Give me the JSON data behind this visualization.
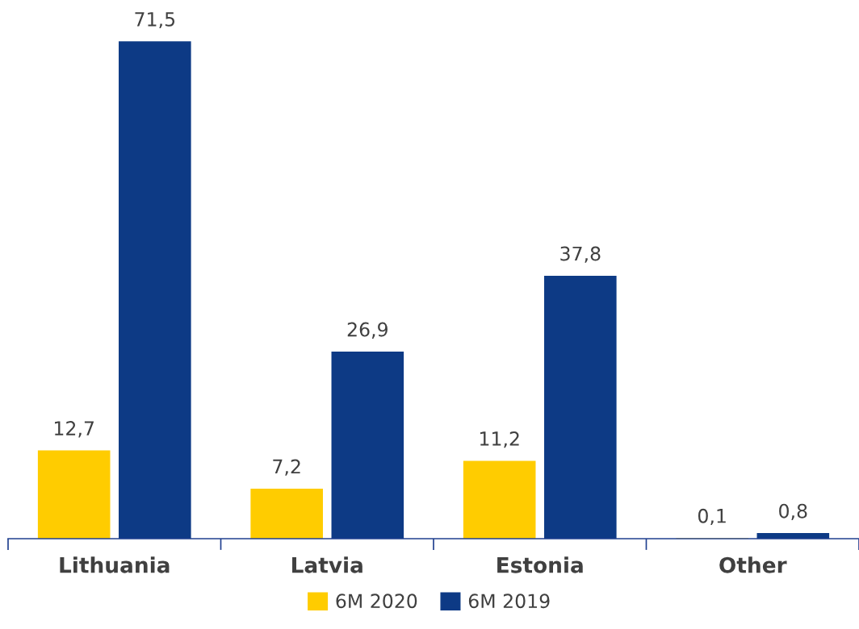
{
  "chart_data": {
    "type": "bar",
    "categories": [
      "Lithuania",
      "Latvia",
      "Estonia",
      "Other"
    ],
    "series": [
      {
        "name": "6M 2020",
        "color": "#ffcc00",
        "values": [
          12.7,
          7.2,
          11.2,
          0.1
        ],
        "value_labels": [
          "12,7",
          "7,2",
          "11,2",
          "0,1"
        ]
      },
      {
        "name": "6M 2019",
        "color": "#0d3a85",
        "values": [
          71.5,
          26.9,
          37.8,
          0.8
        ],
        "value_labels": [
          "71,5",
          "26,9",
          "37,8",
          "0,8"
        ]
      }
    ],
    "grid": false,
    "legend": "bottom"
  }
}
